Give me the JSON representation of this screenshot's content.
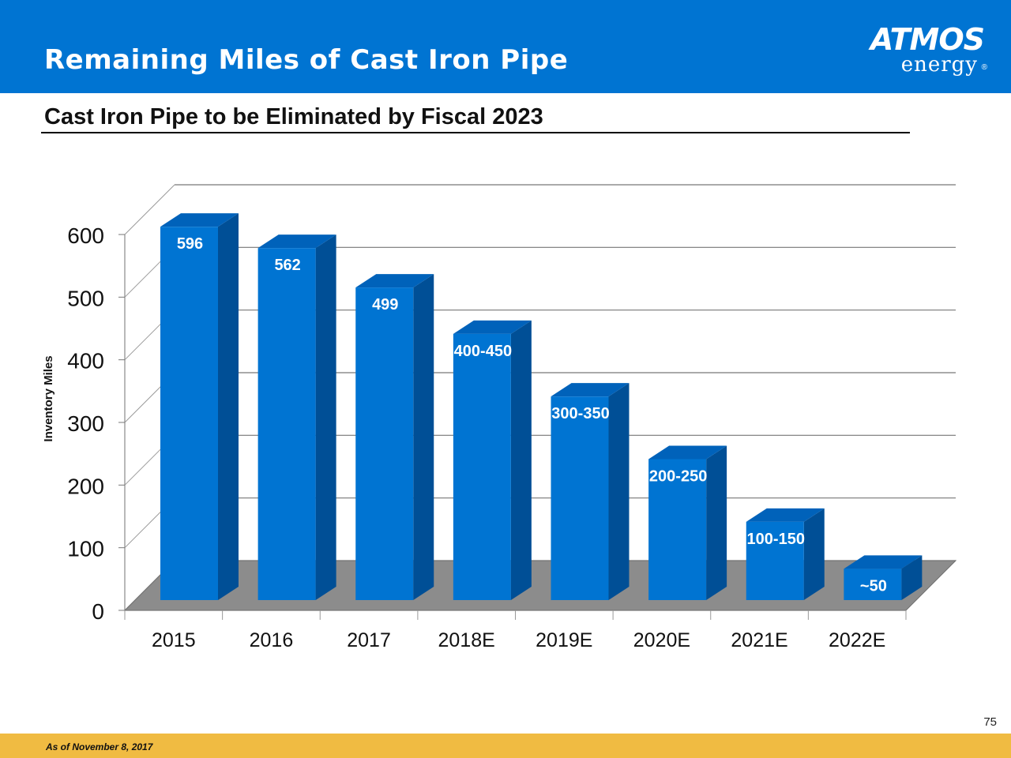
{
  "header": {
    "title": "Remaining Miles of Cast Iron Pipe",
    "logo_word": "ATMOS",
    "logo_sub": "energy",
    "logo_reg": "®"
  },
  "subtitle": "Cast Iron Pipe to be Eliminated by Fiscal 2023",
  "footer": {
    "note": "As of November 8, 2017",
    "page_number": "75"
  },
  "colors": {
    "header_bg": "#0074d2",
    "bar_front": "#0074d2",
    "bar_side": "#004f96",
    "bar_top": "#0062ba",
    "footer_bg": "#f0bb42"
  },
  "chart_data": {
    "type": "bar",
    "title": "Cast Iron Pipe to be Eliminated by Fiscal 2023",
    "xlabel": "",
    "ylabel": "Inventory Miles",
    "ylim": [
      0,
      600
    ],
    "yticks": [
      0,
      100,
      200,
      300,
      400,
      500,
      600
    ],
    "categories": [
      "2015",
      "2016",
      "2017",
      "2018E",
      "2019E",
      "2020E",
      "2021E",
      "2022E"
    ],
    "values": [
      596,
      562,
      499,
      425,
      325,
      225,
      125,
      50
    ],
    "data_labels": [
      "596",
      "562",
      "499",
      "400-450",
      "300-350",
      "200-250",
      "100-150",
      "~50"
    ],
    "grid": true,
    "legend": "none"
  }
}
